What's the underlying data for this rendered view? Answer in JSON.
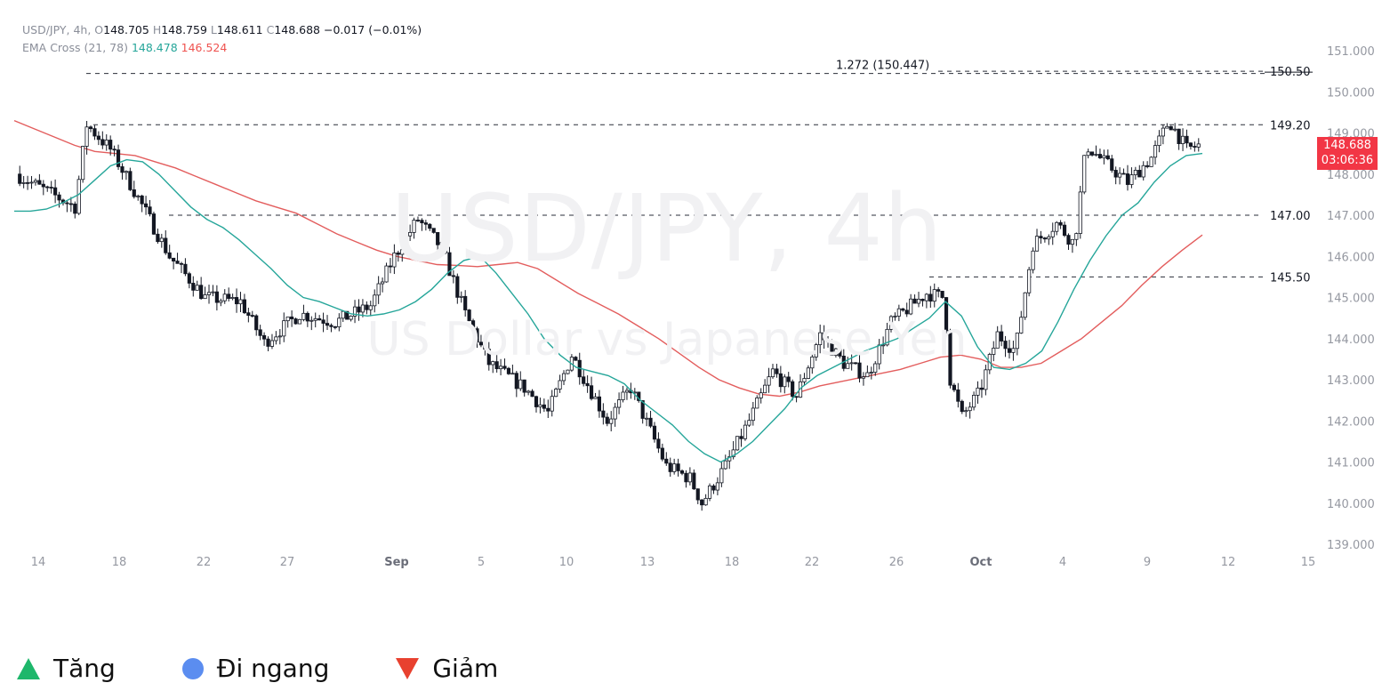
{
  "header": {
    "symbol": "USD/JPY, 4h,",
    "open_label": "O",
    "open": "148.705",
    "high_label": "H",
    "high": "148.759",
    "low_label": "L",
    "low": "148.611",
    "close_label": "C",
    "close": "148.688",
    "change": "−0.017 (−0.01%)",
    "indicator": "EMA Cross (21, 78)",
    "ema_fast": "148.478",
    "ema_slow": "146.524"
  },
  "watermark": {
    "symbol": "USD/JPY, 4h",
    "description": "US Dollar vs Japanese Yen"
  },
  "price_tag": {
    "price": "148.688",
    "countdown": "03:06:36"
  },
  "colors": {
    "up": "#ffffff",
    "down": "#131722",
    "ema_fast": "#26a69a",
    "ema_slow": "#e35d5d",
    "tag": "#f23645"
  },
  "chart_data": {
    "type": "line",
    "title": "",
    "y_axis": {
      "ticks": [
        "151.000",
        "150.000",
        "149.000",
        "148.000",
        "147.000",
        "146.000",
        "145.000",
        "144.000",
        "143.000",
        "142.000",
        "141.000",
        "140.000",
        "139.000"
      ],
      "ylim": [
        138.8,
        151.2
      ]
    },
    "x_axis": {
      "ticks": [
        "14",
        "18",
        "22",
        "27",
        "Sep",
        "5",
        "10",
        "13",
        "18",
        "22",
        "26",
        "Oct",
        "4",
        "9",
        "12",
        "15"
      ]
    },
    "levels": [
      {
        "label": "1.272 (150.447)",
        "value": 150.447
      },
      {
        "label": "150.50",
        "value": 150.5
      },
      {
        "label": "149.20",
        "value": 149.2
      },
      {
        "label": "147.00",
        "value": 147.0
      },
      {
        "label": "145.50",
        "value": 145.5
      }
    ],
    "series": [
      {
        "name": "EMA 21",
        "values": [
          147.1,
          147.1,
          147.15,
          147.3,
          147.5,
          147.85,
          148.2,
          148.35,
          148.3,
          148.0,
          147.6,
          147.2,
          146.9,
          146.7,
          146.4,
          146.05,
          145.7,
          145.3,
          145.0,
          144.9,
          144.75,
          144.6,
          144.55,
          144.6,
          144.7,
          144.9,
          145.2,
          145.6,
          145.9,
          146.0,
          145.6,
          145.1,
          144.6,
          144.0,
          143.6,
          143.3,
          143.2,
          143.1,
          142.9,
          142.5,
          142.2,
          141.9,
          141.5,
          141.2,
          141.0,
          141.2,
          141.5,
          141.9,
          142.3,
          142.8,
          143.1,
          143.3,
          143.5,
          143.7,
          143.85,
          144.0,
          144.25,
          144.5,
          144.9,
          144.55,
          143.8,
          143.3,
          143.25,
          143.4,
          143.7,
          144.4,
          145.2,
          145.9,
          146.5,
          147.0,
          147.3,
          147.8,
          148.2,
          148.45,
          148.5
        ]
      },
      {
        "name": "EMA 78",
        "values": [
          149.3,
          149.1,
          148.9,
          148.7,
          148.55,
          148.5,
          148.45,
          148.3,
          148.15,
          147.95,
          147.75,
          147.55,
          147.35,
          147.2,
          147.05,
          146.8,
          146.55,
          146.35,
          146.15,
          146.0,
          145.9,
          145.8,
          145.78,
          145.75,
          145.8,
          145.85,
          145.7,
          145.4,
          145.1,
          144.85,
          144.6,
          144.3,
          144.0,
          143.65,
          143.3,
          143.0,
          142.8,
          142.65,
          142.6,
          142.7,
          142.85,
          142.95,
          143.05,
          143.15,
          143.25,
          143.4,
          143.55,
          143.6,
          143.5,
          143.3,
          143.3,
          143.4,
          143.7,
          144.0,
          144.4,
          144.8,
          145.3,
          145.75,
          146.15,
          146.52
        ]
      }
    ]
  },
  "legend": [
    {
      "label": "Tăng",
      "icon": "triangle-up-icon",
      "color": "#1eb76b"
    },
    {
      "label": "Đi ngang",
      "icon": "circle-icon",
      "color": "#5b8df0"
    },
    {
      "label": "Giảm",
      "icon": "triangle-down-icon",
      "color": "#e8412f"
    }
  ]
}
